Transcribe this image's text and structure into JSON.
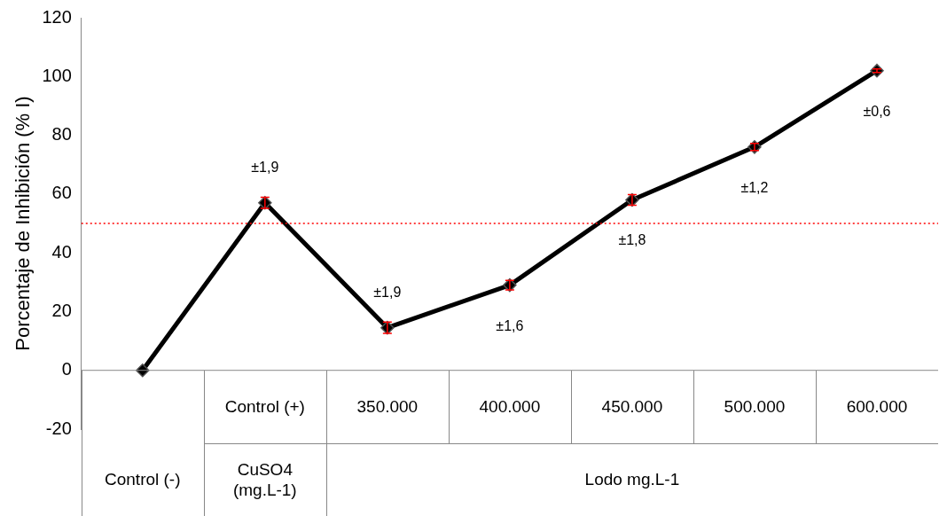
{
  "chart_data": {
    "type": "line",
    "ylabel": "Porcentaje de Inhibición (% I)",
    "categories": [
      null,
      "Control (+)",
      "350.000",
      "400.000",
      "450.000",
      "500.000",
      "600.000"
    ],
    "values": [
      0,
      57,
      14.5,
      29,
      58,
      76,
      102
    ],
    "errors": [
      null,
      1.9,
      1.9,
      1.6,
      1.8,
      1.2,
      0.6
    ],
    "color": "#000000",
    "marker": "diamond",
    "line_style": "solid",
    "ylim": [
      -20,
      120
    ],
    "yticks": [
      -20,
      0,
      20,
      40,
      60,
      80,
      100,
      120
    ],
    "grid": false,
    "legend": false,
    "ref_lines": [
      {
        "axis": "y",
        "value": 50,
        "color": "#ff0000",
        "line_style": "dotted"
      }
    ],
    "annotations": [
      "Control (-)",
      "CuSO4 (mg.L-1)",
      "Lodo mg.L-1",
      "±1,9",
      "±1,9",
      "±1,6",
      "±1,8",
      "±1,2",
      "±0,6"
    ]
  }
}
